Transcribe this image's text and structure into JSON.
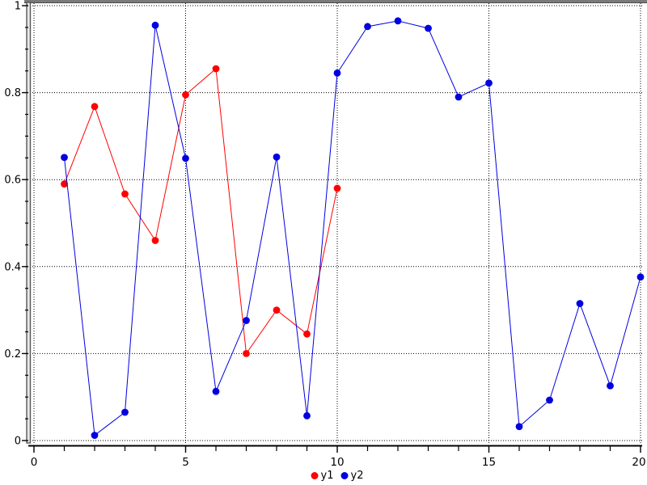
{
  "chart_data": {
    "type": "line",
    "title": "",
    "xlabel": "",
    "ylabel": "",
    "xlim": [
      0,
      20
    ],
    "ylim": [
      0,
      1
    ],
    "x_major_ticks": [
      0,
      5,
      10,
      15,
      20
    ],
    "x_tick_labels": [
      "0",
      "5",
      "10",
      "15",
      "20"
    ],
    "x_minor_step": 1,
    "y_major_ticks": [
      0,
      0.2,
      0.4,
      0.6,
      0.8,
      1
    ],
    "y_tick_labels": [
      "0",
      "0.2",
      "0.4",
      "0.6",
      "0.8",
      "1"
    ],
    "y_minor_step": 0.05,
    "grid": "dotted",
    "grid_color": "#000000",
    "legend_position": "bottom-center",
    "series": [
      {
        "name": "y1",
        "color": "#ff0000",
        "marker": "filled-circle",
        "x": [
          1,
          2,
          3,
          4,
          5,
          6,
          7,
          8,
          9,
          10
        ],
        "values": [
          0.59,
          0.768,
          0.567,
          0.46,
          0.795,
          0.855,
          0.2,
          0.3,
          0.245,
          0.58
        ]
      },
      {
        "name": "y2",
        "color": "#0000e0",
        "marker": "filled-circle",
        "x": [
          1,
          2,
          3,
          4,
          5,
          6,
          7,
          8,
          9,
          10,
          11,
          12,
          13,
          14,
          15,
          16,
          17,
          18,
          19,
          20
        ],
        "values": [
          0.651,
          0.012,
          0.065,
          0.955,
          0.649,
          0.113,
          0.276,
          0.652,
          0.057,
          0.845,
          0.952,
          0.965,
          0.948,
          0.79,
          0.822,
          0.032,
          0.093,
          0.315,
          0.126,
          0.376
        ]
      }
    ]
  },
  "legend": {
    "items": [
      {
        "label": "y1",
        "color": "#ff0000"
      },
      {
        "label": "y2",
        "color": "#0000e0"
      }
    ]
  }
}
